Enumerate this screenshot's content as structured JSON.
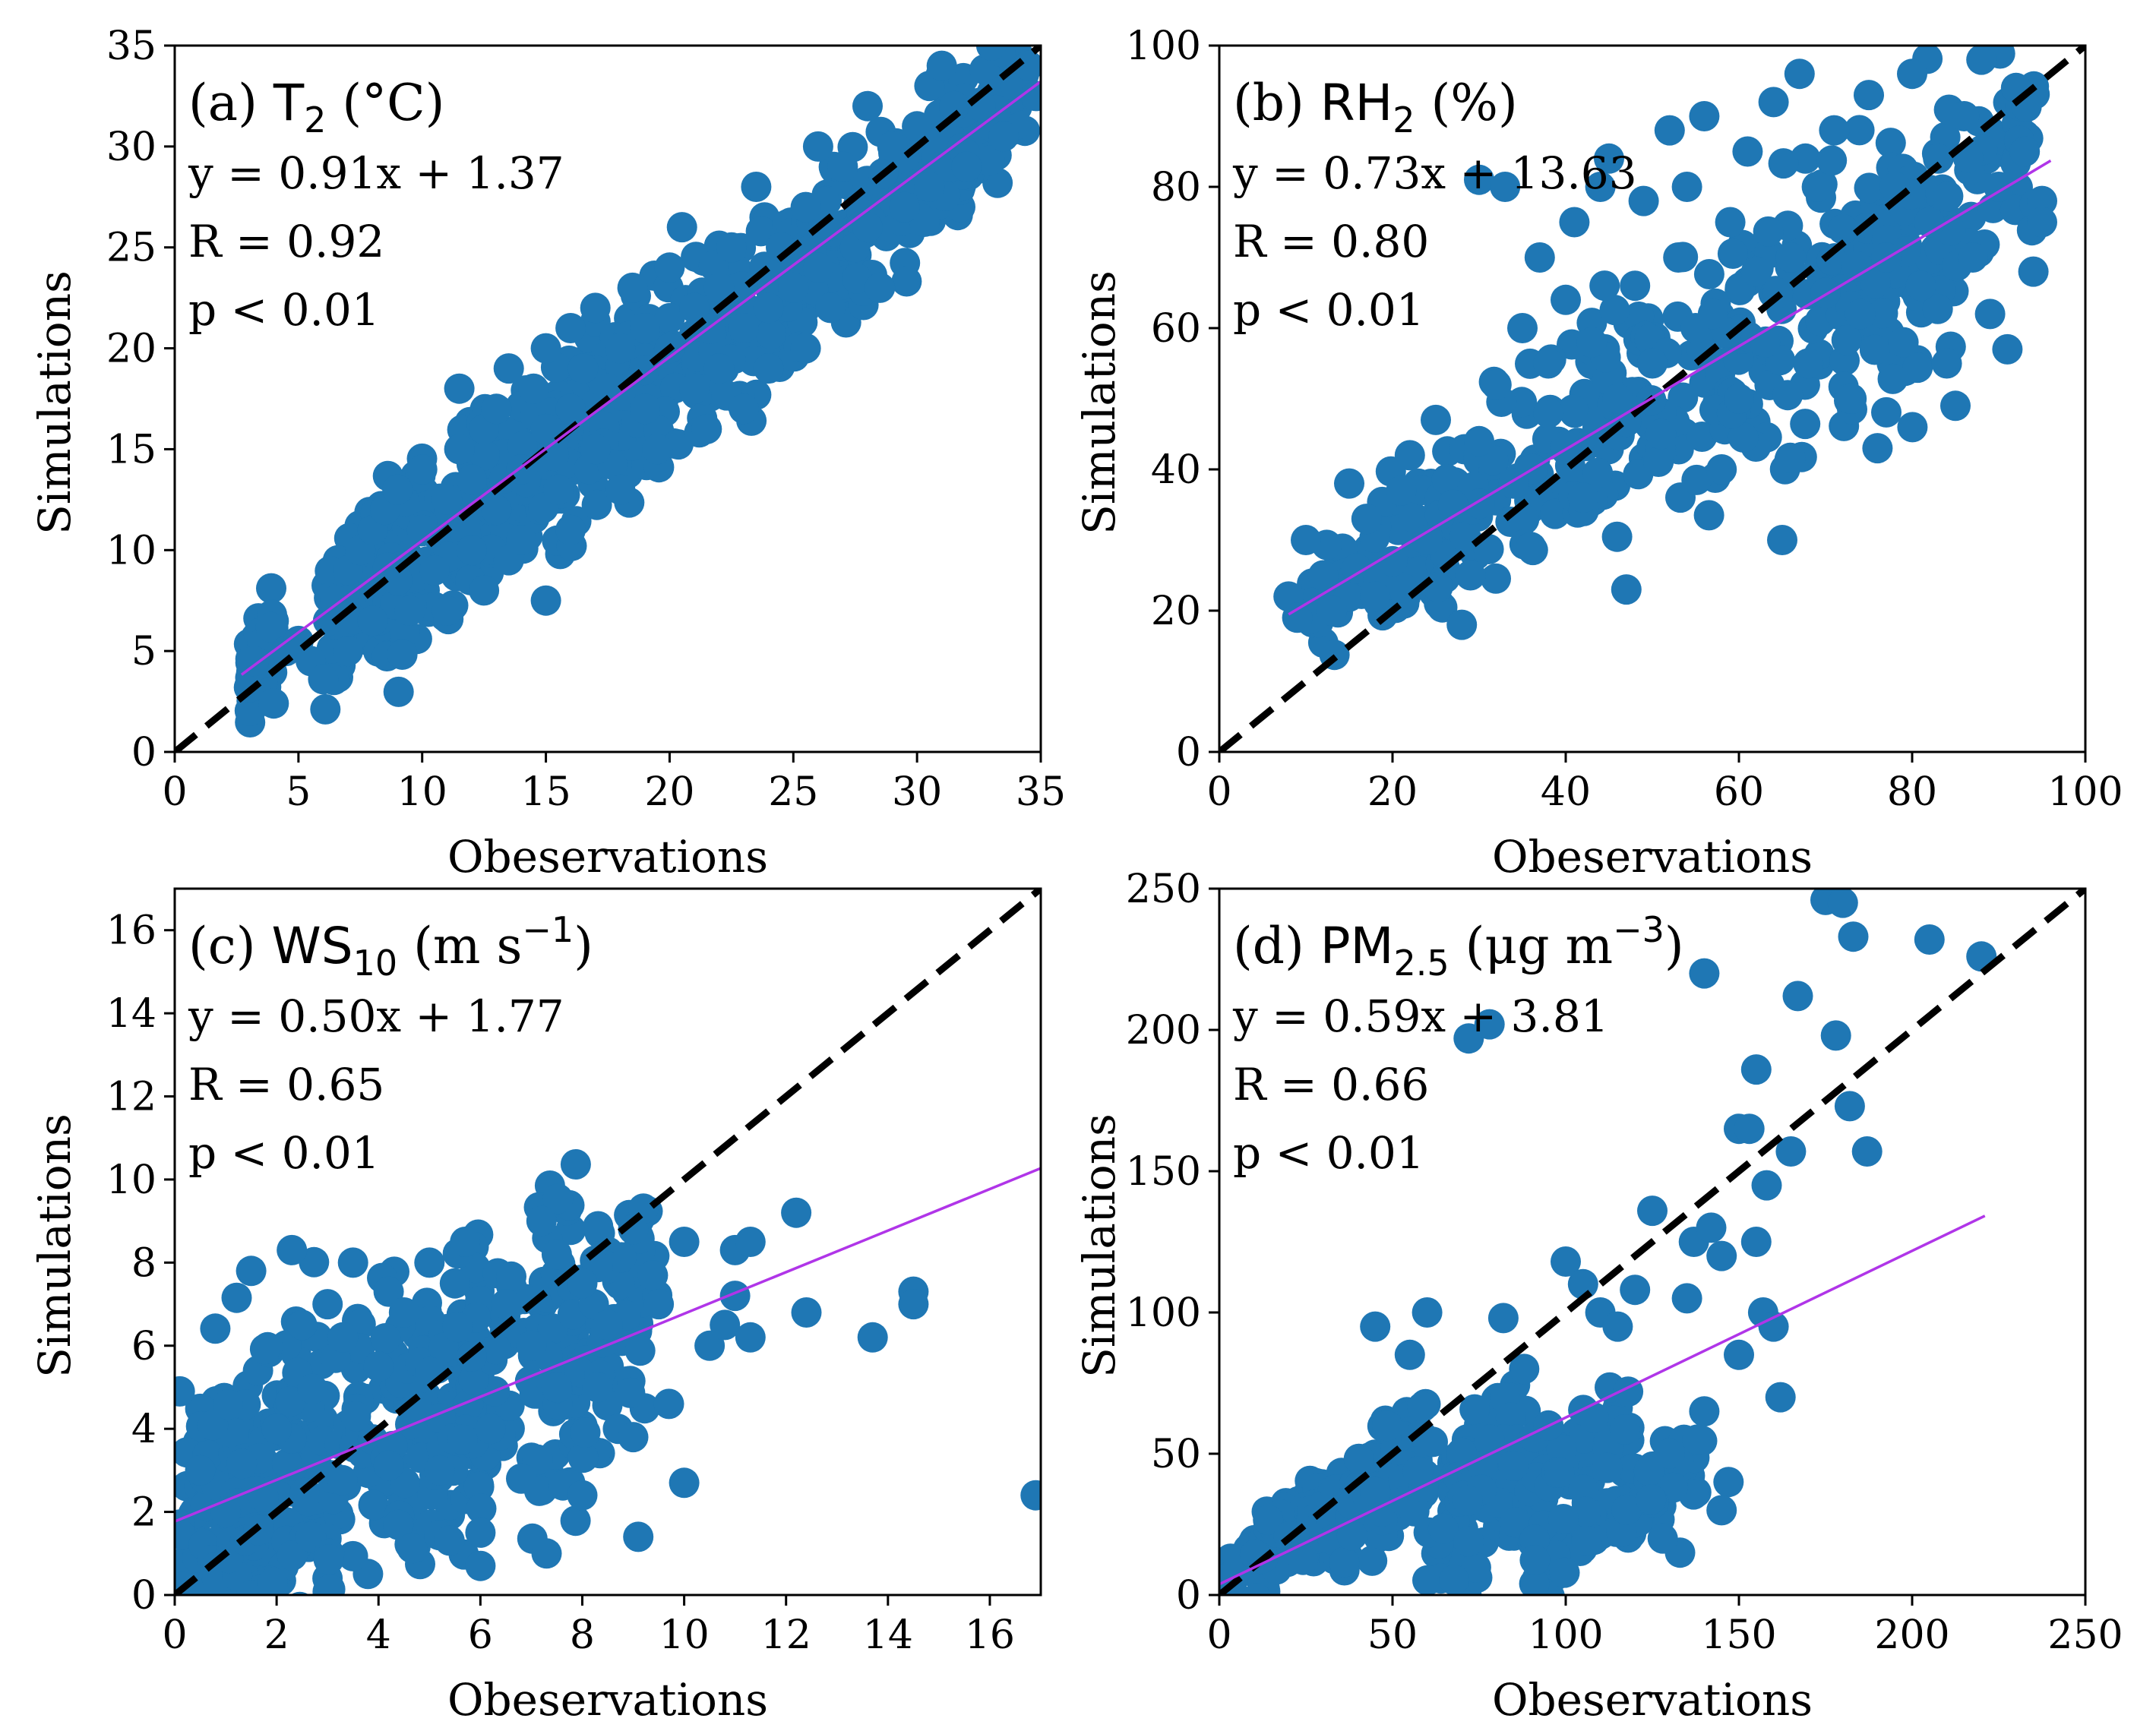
{
  "figure": {
    "marker_color": "#1f77b4",
    "identity_line_color": "#000000",
    "fit_line_color": "#b035e8"
  },
  "chart_data": [
    {
      "id": "a",
      "type": "scatter",
      "title_prefix": "(a) ",
      "title_var": "T",
      "title_sub": "2",
      "title_sup": "",
      "title_unit": " (°C)",
      "title_unit_close": "",
      "equation": "y = 0.91x + 1.37",
      "r_text": "R = 0.92",
      "p_text": "p < 0.01",
      "xlabel": "Obeservations",
      "ylabel": "Simulations",
      "xlim": [
        0,
        35
      ],
      "ylim": [
        0,
        35
      ],
      "xticks": [
        0,
        5,
        10,
        15,
        20,
        25,
        30,
        35
      ],
      "yticks": [
        0,
        5,
        10,
        15,
        20,
        25,
        30,
        35
      ],
      "fit": {
        "slope": 0.91,
        "intercept": 1.37,
        "x_range": [
          2.7,
          35
        ]
      },
      "points": [
        [
          3,
          3.2
        ],
        [
          3.2,
          4.5
        ],
        [
          4,
          2.4
        ],
        [
          4.5,
          5
        ],
        [
          5,
          5.5
        ],
        [
          5.5,
          4.5
        ],
        [
          6,
          3.6
        ],
        [
          6.2,
          6.5
        ],
        [
          6.5,
          7.5
        ],
        [
          7,
          5
        ],
        [
          7,
          9
        ],
        [
          7.5,
          10
        ],
        [
          8,
          11
        ],
        [
          8,
          6.5
        ],
        [
          8.5,
          12
        ],
        [
          9,
          8.5
        ],
        [
          9,
          13
        ],
        [
          9.5,
          7
        ],
        [
          10,
          11
        ],
        [
          10,
          14
        ],
        [
          10.5,
          9
        ],
        [
          11,
          12.5
        ],
        [
          11,
          7
        ],
        [
          11.5,
          15
        ],
        [
          11.5,
          18
        ],
        [
          12,
          10
        ],
        [
          12,
          13.5
        ],
        [
          12.5,
          16
        ],
        [
          12.5,
          8
        ],
        [
          13,
          12
        ],
        [
          13,
          17
        ],
        [
          13.5,
          19
        ],
        [
          13.5,
          9.5
        ],
        [
          14,
          14
        ],
        [
          14,
          10.5
        ],
        [
          14.5,
          18
        ],
        [
          15,
          16
        ],
        [
          15,
          20
        ],
        [
          15,
          7.5
        ],
        [
          15.5,
          13
        ],
        [
          16,
          21
        ],
        [
          16,
          17
        ],
        [
          16,
          11
        ],
        [
          16.5,
          19
        ],
        [
          17,
          15
        ],
        [
          17,
          22
        ],
        [
          17.5,
          18
        ],
        [
          18,
          20
        ],
        [
          18,
          13
        ],
        [
          18.5,
          23
        ],
        [
          19,
          17
        ],
        [
          19,
          21
        ],
        [
          19.5,
          15
        ],
        [
          20,
          20
        ],
        [
          20,
          24
        ],
        [
          20.5,
          26
        ],
        [
          21,
          18
        ],
        [
          21,
          22
        ],
        [
          21.5,
          16
        ],
        [
          22,
          23
        ],
        [
          22,
          19
        ],
        [
          22.5,
          25
        ],
        [
          23,
          21
        ],
        [
          23,
          17
        ],
        [
          23.5,
          28
        ],
        [
          24,
          22
        ],
        [
          24,
          19
        ],
        [
          24.5,
          25
        ],
        [
          25,
          23
        ],
        [
          25.5,
          20
        ],
        [
          25.5,
          27
        ],
        [
          26,
          30
        ],
        [
          26,
          24
        ],
        [
          26.5,
          22
        ],
        [
          27,
          29
        ],
        [
          27.5,
          25
        ],
        [
          28,
          32
        ],
        [
          28,
          26
        ],
        [
          28.5,
          23
        ],
        [
          29,
          30
        ],
        [
          29.5,
          27
        ],
        [
          30,
          31
        ],
        [
          30.5,
          33
        ],
        [
          30.5,
          28
        ],
        [
          31,
          34
        ],
        [
          31.5,
          32
        ],
        [
          32,
          29
        ],
        [
          33,
          31
        ],
        [
          33,
          35
        ],
        [
          33.5,
          30.5
        ],
        [
          34,
          33
        ],
        [
          34.5,
          34
        ],
        [
          34.8,
          32.5
        ]
      ],
      "cluster_segments": [
        [
          3,
          4,
          3.5,
          6,
          1.5
        ],
        [
          6,
          10,
          5.5,
          11.5,
          2.5
        ],
        [
          8,
          13,
          7,
          14.5,
          3
        ],
        [
          11,
          17,
          10,
          18,
          3.2
        ],
        [
          14,
          20,
          13,
          21,
          3.2
        ],
        [
          17,
          24,
          16,
          23,
          3.2
        ],
        [
          21,
          28,
          19,
          26,
          3
        ],
        [
          25,
          32,
          23,
          30,
          2.6
        ],
        [
          29,
          34.5,
          27,
          33,
          2
        ]
      ]
    },
    {
      "id": "b",
      "type": "scatter",
      "title_prefix": "(b) ",
      "title_var": "RH",
      "title_sub": "2",
      "title_sup": "",
      "title_unit": " (%)",
      "title_unit_close": "",
      "equation": "y = 0.73x + 13.63",
      "r_text": "R = 0.80",
      "p_text": "p < 0.01",
      "xlabel": "Obeservations",
      "ylabel": "Simulations",
      "xlim": [
        0,
        100
      ],
      "ylim": [
        0,
        100
      ],
      "xticks": [
        0,
        20,
        40,
        60,
        80,
        100
      ],
      "yticks": [
        0,
        20,
        40,
        60,
        80,
        100
      ],
      "fit": {
        "slope": 0.73,
        "intercept": 13.63,
        "x_range": [
          8,
          96
        ]
      },
      "points": [
        [
          8,
          22
        ],
        [
          9,
          19
        ],
        [
          10,
          30
        ],
        [
          12,
          25
        ],
        [
          13,
          20
        ],
        [
          15,
          38
        ],
        [
          17,
          33
        ],
        [
          18,
          22
        ],
        [
          20,
          27
        ],
        [
          21,
          37
        ],
        [
          22,
          42
        ],
        [
          24,
          30
        ],
        [
          25,
          47
        ],
        [
          27,
          35
        ],
        [
          28,
          18
        ],
        [
          29,
          25
        ],
        [
          30,
          81
        ],
        [
          30,
          44
        ],
        [
          32,
          52
        ],
        [
          33,
          80
        ],
        [
          34,
          38
        ],
        [
          35,
          60
        ],
        [
          36,
          29
        ],
        [
          37,
          70
        ],
        [
          38,
          55
        ],
        [
          38,
          48
        ],
        [
          40,
          64
        ],
        [
          41,
          75
        ],
        [
          42,
          36
        ],
        [
          43,
          58
        ],
        [
          44,
          80
        ],
        [
          45,
          84
        ],
        [
          46,
          50
        ],
        [
          47,
          23
        ],
        [
          48,
          66
        ],
        [
          49,
          78
        ],
        [
          50,
          55
        ],
        [
          51,
          45
        ],
        [
          52,
          88
        ],
        [
          53,
          70
        ],
        [
          54,
          80
        ],
        [
          55,
          60
        ],
        [
          56,
          90
        ],
        [
          57,
          62
        ],
        [
          58,
          40
        ],
        [
          59,
          75
        ],
        [
          60,
          50
        ],
        [
          61,
          85
        ],
        [
          62,
          68
        ],
        [
          63,
          58
        ],
        [
          64,
          92
        ],
        [
          65,
          30
        ],
        [
          66,
          70
        ],
        [
          67,
          96
        ],
        [
          68,
          55
        ],
        [
          69,
          80
        ],
        [
          70,
          65
        ],
        [
          71,
          88
        ],
        [
          72,
          74
        ],
        [
          73,
          50
        ],
        [
          74,
          62
        ],
        [
          75,
          93
        ],
        [
          76,
          43
        ],
        [
          77,
          70
        ],
        [
          78,
          80
        ],
        [
          79,
          58
        ],
        [
          80,
          96
        ],
        [
          81,
          66
        ],
        [
          82,
          75
        ],
        [
          83,
          84
        ],
        [
          84,
          55
        ],
        [
          85,
          49
        ],
        [
          86,
          90
        ],
        [
          87,
          70
        ],
        [
          88,
          98
        ],
        [
          89,
          62
        ],
        [
          90,
          80
        ],
        [
          91,
          57
        ],
        [
          92,
          94
        ],
        [
          93,
          85
        ],
        [
          94,
          68
        ],
        [
          95,
          78
        ],
        [
          95,
          75
        ]
      ],
      "cluster_segments": [
        [
          10,
          30,
          20,
          35,
          7
        ],
        [
          25,
          50,
          30,
          55,
          9
        ],
        [
          40,
          70,
          40,
          70,
          11
        ],
        [
          55,
          85,
          45,
          80,
          12
        ],
        [
          70,
          95,
          55,
          92,
          12
        ]
      ]
    },
    {
      "id": "c",
      "type": "scatter",
      "title_prefix": "(c) ",
      "title_var": "WS",
      "title_sub": "10",
      "title_sup": "",
      "title_unit": " (m s",
      "title_unit_sup": "−1",
      "title_unit_close": ")",
      "equation": "y = 0.50x + 1.77",
      "r_text": "R = 0.65",
      "p_text": "p < 0.01",
      "xlabel": "Obeservations",
      "ylabel": "Simulations",
      "xlim": [
        0,
        17
      ],
      "ylim": [
        0,
        17
      ],
      "xticks": [
        0,
        2,
        4,
        6,
        8,
        10,
        12,
        14,
        16
      ],
      "yticks": [
        0,
        2,
        4,
        6,
        8,
        10,
        12,
        14,
        16
      ],
      "fit": {
        "slope": 0.5,
        "intercept": 1.77,
        "x_range": [
          0,
          17
        ]
      },
      "points": [
        [
          0.1,
          4.9
        ],
        [
          0.5,
          3
        ],
        [
          1,
          2
        ],
        [
          1.5,
          7.8
        ],
        [
          2,
          4
        ],
        [
          2.3,
          8.3
        ],
        [
          2.5,
          6.5
        ],
        [
          3,
          7
        ],
        [
          3.3,
          6.2
        ],
        [
          3.5,
          8
        ],
        [
          4,
          5.5
        ],
        [
          4.2,
          7.3
        ],
        [
          4.5,
          6.8
        ],
        [
          5,
          8
        ],
        [
          5.2,
          3
        ],
        [
          5.5,
          7.5
        ],
        [
          5.7,
          8.5
        ],
        [
          6,
          1.5
        ],
        [
          6,
          0.7
        ],
        [
          6.2,
          4
        ],
        [
          6.5,
          7
        ],
        [
          6.8,
          2.8
        ],
        [
          7,
          6
        ],
        [
          7.2,
          9
        ],
        [
          7.3,
          1
        ],
        [
          7.5,
          8.2
        ],
        [
          7.5,
          5
        ],
        [
          8,
          2.4
        ],
        [
          8,
          7.5
        ],
        [
          8.3,
          5
        ],
        [
          8.5,
          6.5
        ],
        [
          8.7,
          4
        ],
        [
          9,
          8.8
        ],
        [
          9,
          3.8
        ],
        [
          9.1,
          1.4
        ],
        [
          9.2,
          9.3
        ],
        [
          9.5,
          7
        ],
        [
          9.7,
          4.6
        ],
        [
          10,
          8.5
        ],
        [
          10,
          2.7
        ],
        [
          10.5,
          6
        ],
        [
          10.8,
          6.5
        ],
        [
          11,
          7.2
        ],
        [
          11,
          8.3
        ],
        [
          11.3,
          6.2
        ],
        [
          11.3,
          8.5
        ],
        [
          12.2,
          9.2
        ],
        [
          12.4,
          6.8
        ],
        [
          13.7,
          6.2
        ],
        [
          14.5,
          7.3
        ],
        [
          14.5,
          7
        ],
        [
          16.9,
          2.4
        ]
      ],
      "cluster_segments": [
        [
          0.1,
          1.5,
          0.1,
          3.5,
          2.5
        ],
        [
          0.5,
          3,
          0.5,
          5,
          2.5
        ],
        [
          1,
          5,
          1,
          5,
          2.6
        ],
        [
          3,
          6,
          2,
          6,
          2.4
        ],
        [
          5,
          8,
          3,
          8,
          2.4
        ],
        [
          7,
          9.5,
          4,
          8,
          2
        ]
      ]
    },
    {
      "id": "d",
      "type": "scatter",
      "title_prefix": "(d) ",
      "title_var": "PM",
      "title_sub": "2.5",
      "title_sup": "",
      "title_unit": " (μg m",
      "title_unit_sup": "−3",
      "title_unit_close": ")",
      "equation": "y = 0.59x + 3.81",
      "r_text": "R = 0.66",
      "p_text": "p < 0.01",
      "xlabel": "Obeservations",
      "ylabel": "Simulations",
      "xlim": [
        0,
        250
      ],
      "ylim": [
        0,
        250
      ],
      "xticks": [
        0,
        50,
        100,
        150,
        200,
        250
      ],
      "yticks": [
        0,
        50,
        100,
        150,
        200,
        250
      ],
      "fit": {
        "slope": 0.59,
        "intercept": 3.81,
        "x_range": [
          0,
          221
        ]
      },
      "points": [
        [
          72,
          197
        ],
        [
          78,
          202
        ],
        [
          100,
          118
        ],
        [
          105,
          110
        ],
        [
          110,
          100
        ],
        [
          115,
          95
        ],
        [
          120,
          108
        ],
        [
          125,
          136
        ],
        [
          130,
          50
        ],
        [
          133,
          15
        ],
        [
          135,
          105
        ],
        [
          137,
          125
        ],
        [
          140,
          220
        ],
        [
          140,
          65
        ],
        [
          142,
          130
        ],
        [
          145,
          120
        ],
        [
          147,
          40
        ],
        [
          150,
          165
        ],
        [
          150,
          85
        ],
        [
          153,
          165
        ],
        [
          155,
          186
        ],
        [
          155,
          125
        ],
        [
          157,
          100
        ],
        [
          158,
          145
        ],
        [
          160,
          95
        ],
        [
          162,
          70
        ],
        [
          165,
          157
        ],
        [
          167,
          212
        ],
        [
          175,
          246
        ],
        [
          178,
          198
        ],
        [
          180,
          245
        ],
        [
          182,
          173
        ],
        [
          183,
          233
        ],
        [
          187,
          157
        ],
        [
          205,
          232
        ],
        [
          220,
          226
        ],
        [
          145,
          30
        ],
        [
          138,
          55
        ],
        [
          128,
          20
        ],
        [
          118,
          72
        ],
        [
          112,
          45
        ],
        [
          95,
          60
        ],
        [
          88,
          80
        ],
        [
          82,
          98
        ],
        [
          78,
          55
        ],
        [
          60,
          100
        ],
        [
          55,
          85
        ],
        [
          45,
          95
        ]
      ],
      "cluster_segments": [
        [
          2,
          30,
          5,
          35,
          5
        ],
        [
          10,
          60,
          10,
          60,
          10
        ],
        [
          30,
          90,
          15,
          65,
          10
        ],
        [
          60,
          120,
          15,
          60,
          12
        ],
        [
          90,
          140,
          10,
          50,
          10
        ]
      ]
    }
  ]
}
